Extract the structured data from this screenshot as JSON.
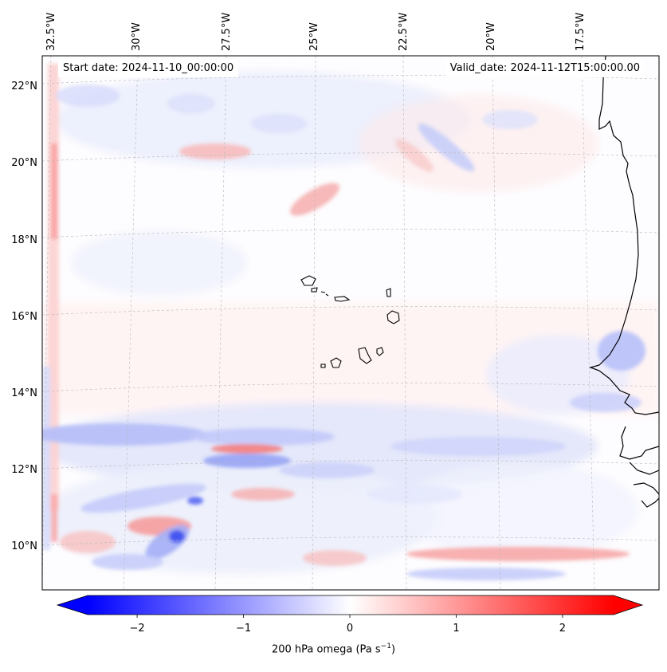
{
  "map": {
    "start_date_text": "Start date: 2024-11-10_00:00:00",
    "valid_date_text": "Valid_date: 2024-11-12T15:00:00.00",
    "lon_labels": [
      "32.5°W",
      "30°W",
      "27.5°W",
      "25°W",
      "22.5°W",
      "20°W",
      "17.5°W"
    ],
    "lat_labels": [
      "22°N",
      "20°N",
      "18°N",
      "16°N",
      "14°N",
      "12°N",
      "10°N"
    ],
    "field_name": "200 hPa omega",
    "colorbar": {
      "label_main": "200 hPa omega (Pa s",
      "label_exp": "−1",
      "label_close": ")",
      "ticks": [
        "−2",
        "−1",
        "0",
        "1",
        "2"
      ],
      "tick_values": [
        -2,
        -1,
        0,
        1,
        2
      ],
      "range": [
        -2.75,
        2.75
      ],
      "cmap": "bwr",
      "negative_color": "#0000ff",
      "neutral_color": "#ffffff",
      "positive_color": "#ff0000"
    },
    "colors": {
      "coastline": "#000000",
      "gridline": "#b8b8b8"
    }
  }
}
